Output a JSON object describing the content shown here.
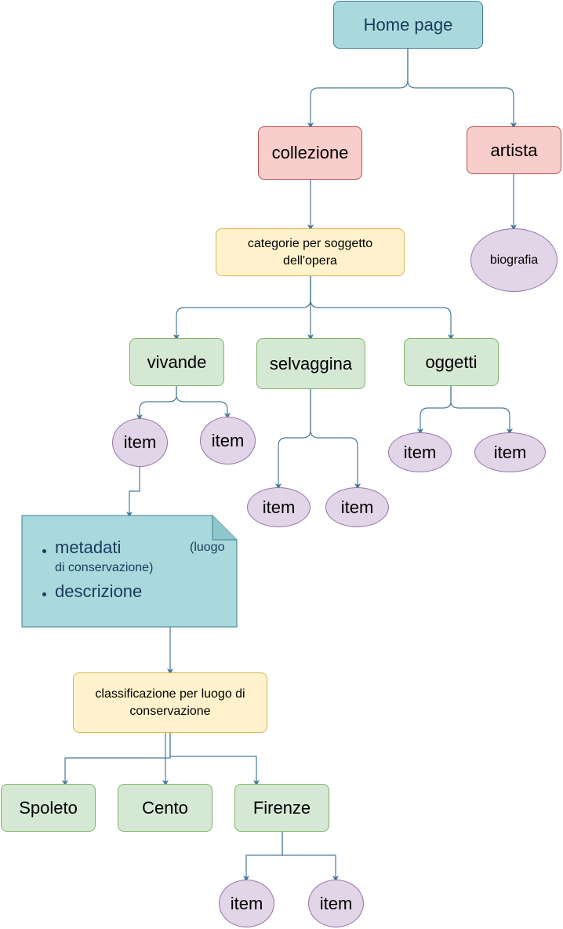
{
  "diagram": {
    "root": "Home page",
    "collezione": "collezione",
    "artista": "artista",
    "biografia": "biografia",
    "categorie_line1": "categorie per soggetto",
    "categorie_line2": "dell'opera",
    "vivande": "vivande",
    "selvaggina": "selvaggina",
    "oggetti": "oggetti",
    "item": "item",
    "note": {
      "metadati": "metadati",
      "luogo": "(luogo",
      "conservazione": "di conservazione)",
      "descrizione": "descrizione"
    },
    "classificazione_line1": "classificazione per luogo di",
    "classificazione_line2": "conservazione",
    "spoleto": "Spoleto",
    "cento": "Cento",
    "firenze": "Firenze"
  },
  "colors": {
    "connector": "#4a7a9a",
    "teal_fill": "#a9d9dc",
    "pink_fill": "#f8cecc",
    "yellow_fill": "#fff2cc",
    "green_fill": "#d5e8d4",
    "purple_fill": "#e1d5e7"
  }
}
